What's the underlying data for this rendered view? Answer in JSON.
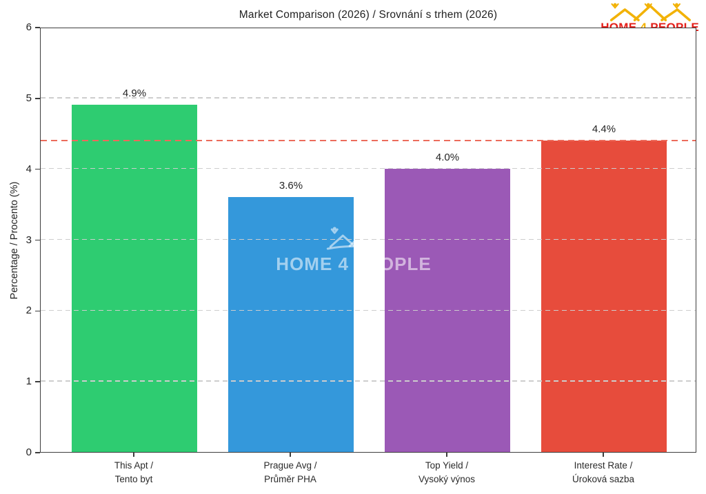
{
  "logo": {
    "home": "HOME",
    "four": "4",
    "people": "PEOPLE",
    "red": "#e3201b",
    "gold": "#f2b206"
  },
  "watermark": {
    "text": "HOME 4 PEOPLE"
  },
  "chart_data": {
    "type": "bar",
    "title": "Market Comparison (2026) / Srovnání s trhem (2026)",
    "xlabel": "",
    "ylabel": "Percentage / Procento (%)",
    "ylim": [
      0,
      6
    ],
    "yticks": [
      0,
      1,
      2,
      3,
      4,
      5,
      6
    ],
    "ytick_labels": [
      "0",
      "1",
      "2",
      "3",
      "4",
      "5",
      "6"
    ],
    "grid": "horizontal dashed gridlines at integer ticks, drawn above bars",
    "legend": "none",
    "categories": [
      [
        "This Apt /",
        "Tento byt"
      ],
      [
        "Prague Avg /",
        "Průměr PHA"
      ],
      [
        "Top Yield /",
        "Vysoký výnos"
      ],
      [
        "Interest Rate /",
        "Úroková sazba"
      ]
    ],
    "values": [
      4.9,
      3.6,
      4.0,
      4.4
    ],
    "bar_labels": [
      "4.9%",
      "3.6%",
      "4.0%",
      "4.4%"
    ],
    "bar_colors": [
      "#2ecc71",
      "#3498db",
      "#9b59b6",
      "#e74c3c"
    ],
    "reference_line": {
      "value": 4.4,
      "color": "#ec6b5b",
      "style": "dashed"
    }
  }
}
